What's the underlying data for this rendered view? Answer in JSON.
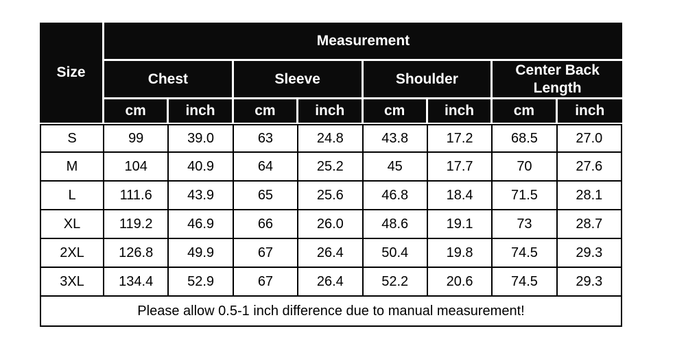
{
  "chart_data": {
    "type": "table",
    "title": "Measurement",
    "corner_header": "Size",
    "column_groups": [
      {
        "label": "Chest"
      },
      {
        "label": "Sleeve"
      },
      {
        "label": "Shoulder"
      },
      {
        "label": "Center Back Length"
      }
    ],
    "unit_row": [
      "cm",
      "inch",
      "cm",
      "inch",
      "cm",
      "inch",
      "cm",
      "inch"
    ],
    "rows": [
      {
        "size": "S",
        "values": [
          "99",
          "39.0",
          "63",
          "24.8",
          "43.8",
          "17.2",
          "68.5",
          "27.0"
        ]
      },
      {
        "size": "M",
        "values": [
          "104",
          "40.9",
          "64",
          "25.2",
          "45",
          "17.7",
          "70",
          "27.6"
        ]
      },
      {
        "size": "L",
        "values": [
          "111.6",
          "43.9",
          "65",
          "25.6",
          "46.8",
          "18.4",
          "71.5",
          "28.1"
        ]
      },
      {
        "size": "XL",
        "values": [
          "119.2",
          "46.9",
          "66",
          "26.0",
          "48.6",
          "19.1",
          "73",
          "28.7"
        ]
      },
      {
        "size": "2XL",
        "values": [
          "126.8",
          "49.9",
          "67",
          "26.4",
          "50.4",
          "19.8",
          "74.5",
          "29.3"
        ]
      },
      {
        "size": "3XL",
        "values": [
          "134.4",
          "52.9",
          "67",
          "26.4",
          "52.2",
          "20.6",
          "74.5",
          "29.3"
        ]
      }
    ],
    "footnote": "Please allow 0.5-1 inch difference due to manual measurement!"
  },
  "colors": {
    "header_background": "#0b0b0b",
    "header_text": "#ffffff",
    "body_background": "#ffffff",
    "body_text": "#000000",
    "grid_border": "#000000",
    "header_gap": "#ffffff"
  }
}
